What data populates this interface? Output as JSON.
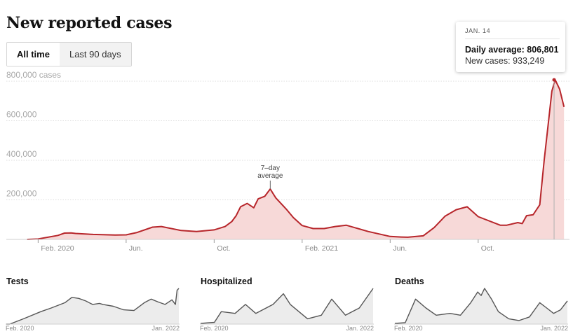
{
  "header": {
    "title": "New reported cases"
  },
  "range_toggle": {
    "all_time_label": "All time",
    "last_90_label": "Last 90 days"
  },
  "tooltip": {
    "date": "JAN. 14",
    "daily_average_label": "Daily average:",
    "daily_average_value": "806,801",
    "new_cases_label": "New cases:",
    "new_cases_value": "933,249"
  },
  "chart_data": [
    {
      "type": "area",
      "title": "New reported cases",
      "ylabel": "cases",
      "ylim": [
        0,
        800000
      ],
      "y_ticks": [
        {
          "value": 200000,
          "label": "200,000"
        },
        {
          "value": 400000,
          "label": "400,000"
        },
        {
          "value": 600000,
          "label": "600,000"
        },
        {
          "value": 800000,
          "label": "800,000 cases"
        }
      ],
      "x_ticks": [
        {
          "month": 1,
          "label": "Feb. 2020"
        },
        {
          "month": 5,
          "label": "Jun."
        },
        {
          "month": 9,
          "label": "Oct."
        },
        {
          "month": 13,
          "label": "Feb. 2021"
        },
        {
          "month": 17,
          "label": "Jun."
        },
        {
          "month": 21,
          "label": "Oct."
        }
      ],
      "grid": true,
      "annotation": {
        "text_line1": "7–day",
        "text_line2": "average",
        "at_month": 11.55,
        "at_value": 255000
      },
      "highlight": {
        "month": 24.45,
        "value": 806801
      },
      "series": [
        {
          "x_months": [
            0.5,
            1,
            1.9,
            2.2,
            2.5,
            2.7,
            3.5,
            4.5,
            5,
            5.5,
            6.2,
            6.6,
            7.5,
            8.2,
            9,
            9.5,
            9.8,
            10,
            10.2,
            10.5,
            10.8,
            11,
            11.3,
            11.55,
            11.8,
            12.3,
            12.6,
            13,
            13.5,
            14,
            14.5,
            15,
            16,
            17,
            17.5,
            17.8,
            18.5,
            19,
            19.5,
            20,
            20.5,
            21,
            22,
            22.3,
            22.8,
            23,
            23.2,
            23.5,
            23.8,
            24,
            24.2,
            24.35,
            24.5,
            24.7,
            24.9
          ],
          "values": [
            0,
            2000,
            20000,
            32000,
            33000,
            30000,
            25000,
            22000,
            23000,
            35000,
            62000,
            65000,
            45000,
            40000,
            48000,
            65000,
            90000,
            120000,
            165000,
            182000,
            160000,
            205000,
            218000,
            255000,
            210000,
            150000,
            110000,
            70000,
            55000,
            55000,
            65000,
            72000,
            40000,
            15000,
            12000,
            11000,
            18000,
            60000,
            118000,
            150000,
            165000,
            115000,
            72000,
            72000,
            85000,
            80000,
            120000,
            125000,
            175000,
            400000,
            600000,
            750000,
            806801,
            760000,
            670000
          ]
        }
      ]
    },
    {
      "type": "area",
      "title": "Tests",
      "x_labels": [
        "Feb. 2020",
        "Jan. 2022"
      ],
      "series": [
        {
          "x": [
            0,
            0.02,
            0.1,
            0.2,
            0.26,
            0.34,
            0.38,
            0.42,
            0.46,
            0.5,
            0.54,
            0.56,
            0.62,
            0.68,
            0.74,
            0.8,
            0.84,
            0.88,
            0.92,
            0.96,
            0.98,
            0.99,
            1.0
          ],
          "v": [
            0.0,
            0.0,
            0.15,
            0.35,
            0.45,
            0.6,
            0.75,
            0.72,
            0.65,
            0.55,
            0.58,
            0.55,
            0.5,
            0.4,
            0.38,
            0.6,
            0.7,
            0.62,
            0.55,
            0.68,
            0.55,
            0.95,
            1.0
          ]
        }
      ]
    },
    {
      "type": "area",
      "title": "Hospitalized",
      "x_labels": [
        "Feb. 2020",
        "Jan. 2022"
      ],
      "series": [
        {
          "x": [
            0,
            0.08,
            0.12,
            0.2,
            0.26,
            0.32,
            0.42,
            0.48,
            0.52,
            0.62,
            0.7,
            0.76,
            0.84,
            0.92,
            1.0
          ],
          "v": [
            0.02,
            0.05,
            0.35,
            0.3,
            0.55,
            0.3,
            0.55,
            0.85,
            0.55,
            0.15,
            0.25,
            0.7,
            0.25,
            0.45,
            1.0
          ]
        }
      ]
    },
    {
      "type": "area",
      "title": "Deaths",
      "x_labels": [
        "Feb. 2020",
        "Jan. 2022"
      ],
      "series": [
        {
          "x": [
            0,
            0.06,
            0.12,
            0.18,
            0.24,
            0.32,
            0.38,
            0.44,
            0.48,
            0.5,
            0.52,
            0.56,
            0.6,
            0.66,
            0.72,
            0.78,
            0.84,
            0.88,
            0.92,
            0.96,
            1.0
          ],
          "v": [
            0.02,
            0.04,
            0.7,
            0.45,
            0.25,
            0.3,
            0.25,
            0.6,
            0.9,
            0.8,
            1.0,
            0.7,
            0.35,
            0.15,
            0.1,
            0.2,
            0.6,
            0.45,
            0.3,
            0.4,
            0.65
          ]
        }
      ]
    }
  ]
}
